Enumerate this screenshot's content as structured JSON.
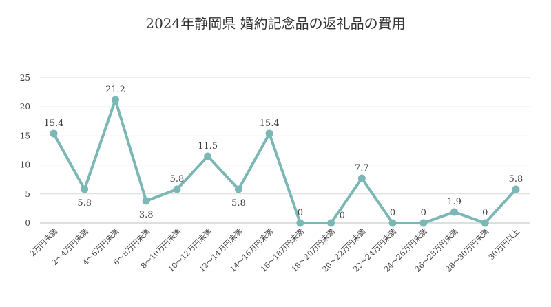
{
  "chart_data": {
    "type": "line",
    "title": "2024年静岡県 婚約記念品の返礼品の費用",
    "xlabel": "",
    "ylabel": "",
    "ylim": [
      0,
      25
    ],
    "yticks": [
      0,
      5,
      10,
      15,
      20,
      25
    ],
    "grid": true,
    "categories": [
      "2万円未満",
      "2～4万円未満",
      "4～6万円未満",
      "6～8万円未満",
      "8～10万円未満",
      "10～12万円未満",
      "12～14万円未満",
      "14～16万円未満",
      "16～18万円未満",
      "18～20万円未満",
      "20～22万円未満",
      "22～24万円未満",
      "24～26万円未満",
      "26～28万円未満",
      "28～30万円未満",
      "30万円以上"
    ],
    "series": [
      {
        "values": [
          15.4,
          5.8,
          21.2,
          3.8,
          5.8,
          11.5,
          5.8,
          15.4,
          0,
          0,
          7.7,
          0,
          0,
          1.9,
          0,
          5.8
        ],
        "data_labels": [
          "15.4",
          "5.8",
          "21.2",
          "3.8",
          "5.8",
          "11.5",
          "5.8",
          "15.4",
          "0",
          "0",
          "7.7",
          "0",
          "0",
          "1.9",
          "0",
          "5.8"
        ],
        "label_positions": [
          "above",
          "below",
          "above",
          "below",
          "above",
          "above",
          "below",
          "above",
          "above",
          "right",
          "above",
          "above",
          "above",
          "above",
          "above",
          "above"
        ]
      }
    ],
    "colors": {
      "line": "#7bb8b5",
      "grid": "#d9d9d9",
      "axis": "#bfbfbf",
      "text": "#404040",
      "title": "#333333"
    }
  }
}
